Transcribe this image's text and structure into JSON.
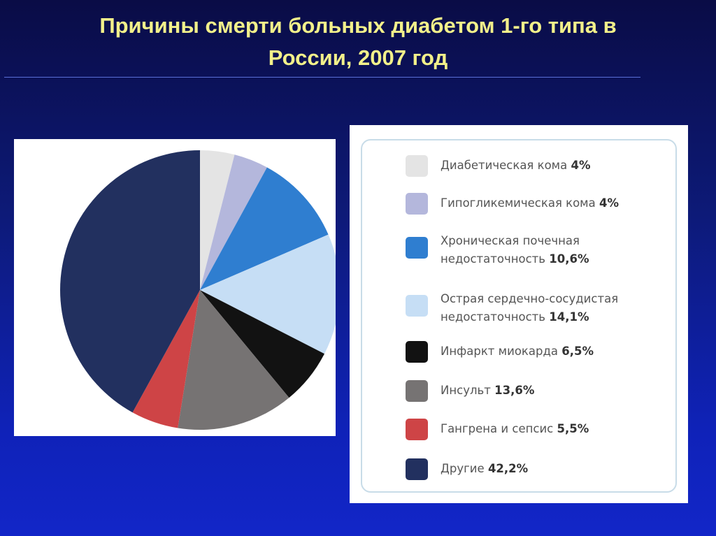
{
  "title": {
    "line1": "Причины смерти больных диабетом 1-го типа в",
    "line2": "России, 2007 год"
  },
  "chart_data": {
    "type": "pie",
    "start_angle_deg": 0,
    "direction": "clockwise",
    "slices": [
      {
        "label": "Диабетическая кома",
        "value": 4,
        "value_text": "4%",
        "color": "#e4e4e4"
      },
      {
        "label": "Гипогликемическая кома",
        "value": 4,
        "value_text": "4%",
        "color": "#b4b7dc"
      },
      {
        "label": "Хроническая почечная недостаточность",
        "label_lines": [
          "Хроническая почечная",
          "недостаточность"
        ],
        "value": 10.6,
        "value_text": "10,6%",
        "color": "#2f7ed0"
      },
      {
        "label": "Острая сердечно-сосудистая недостаточность",
        "label_lines": [
          "Острая сердечно-сосудистая",
          "недостаточность"
        ],
        "value": 14.1,
        "value_text": "14,1%",
        "color": "#c6def5"
      },
      {
        "label": "Инфаркт миокарда",
        "value": 6.5,
        "value_text": "6,5%",
        "color": "#121212"
      },
      {
        "label": "Инсульт",
        "value": 13.6,
        "value_text": "13,6%",
        "color": "#767373"
      },
      {
        "label": "Гангрена и сепсис",
        "value": 5.5,
        "value_text": "5,5%",
        "color": "#ce4446"
      },
      {
        "label": "Другие",
        "value": 42.2,
        "value_text": "42,2%",
        "color": "#22305f"
      }
    ]
  }
}
